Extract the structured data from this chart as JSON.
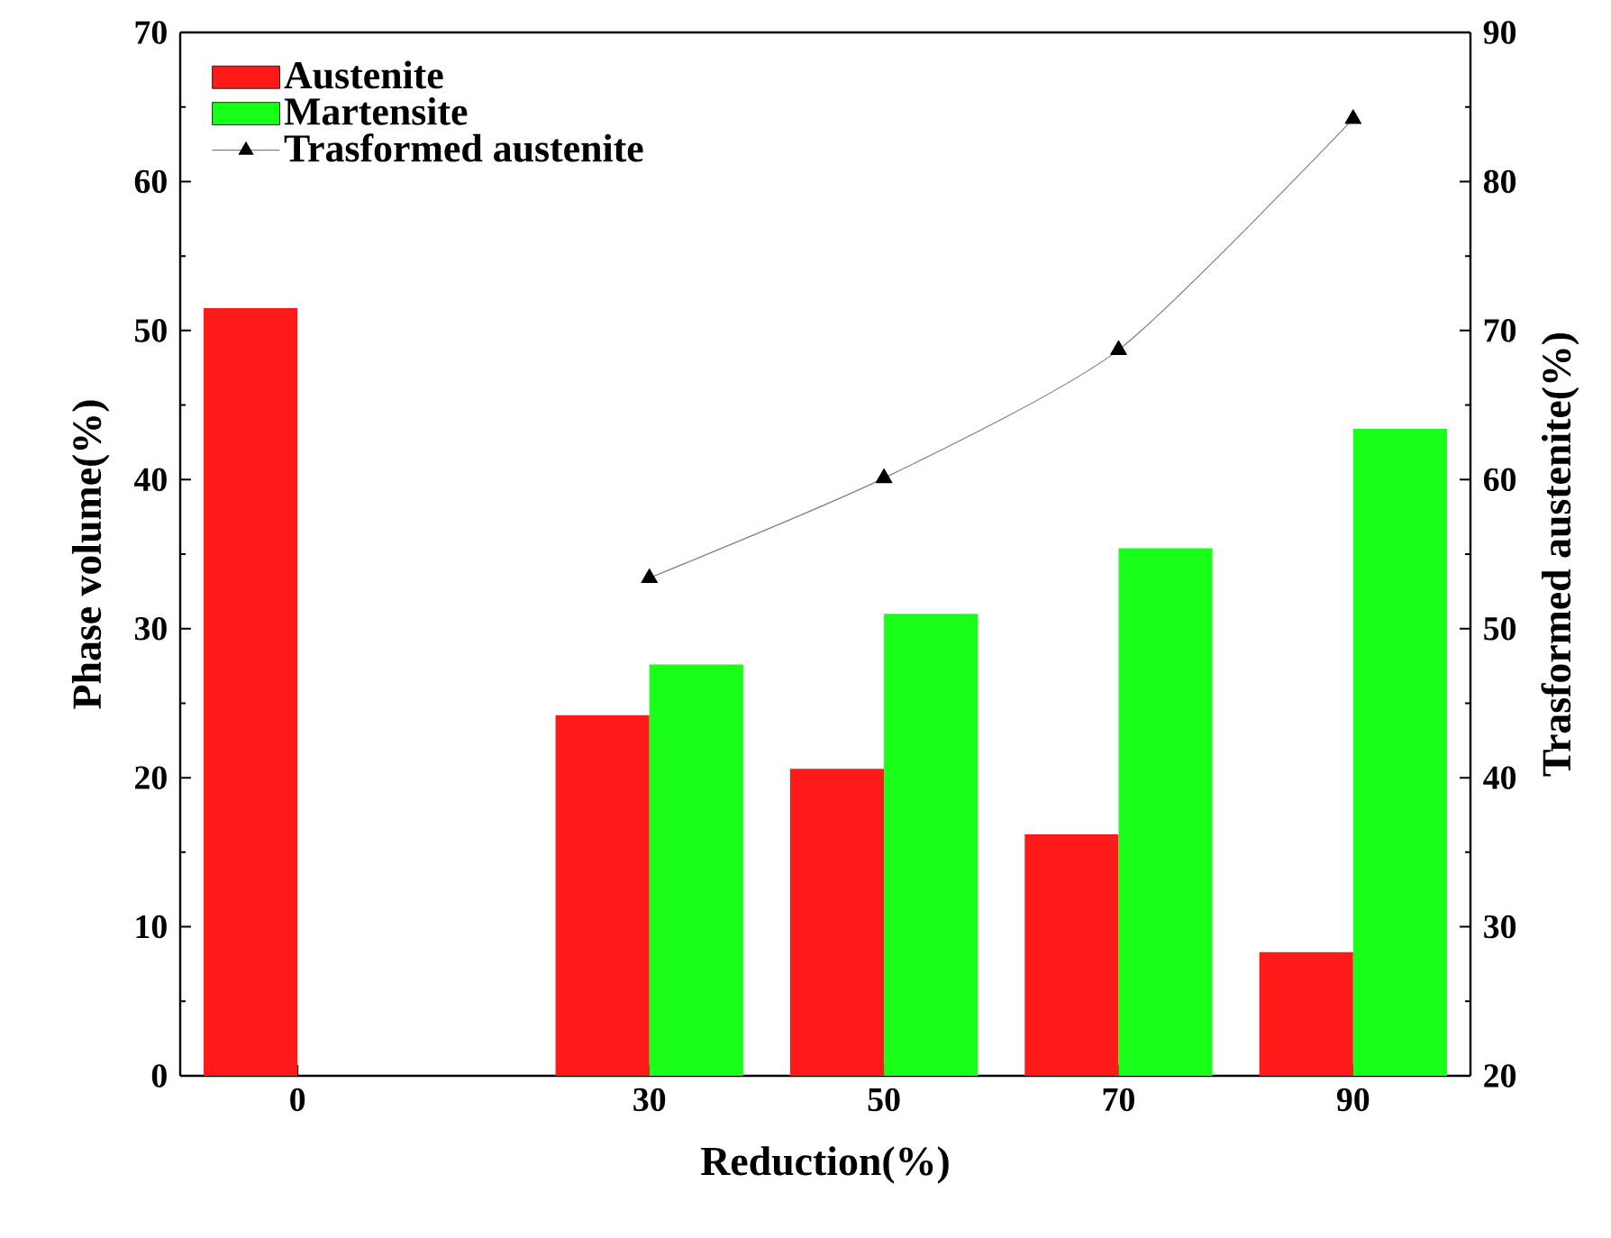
{
  "chart_data": {
    "type": "bar",
    "xlabel": "Reduction(%)",
    "ylabel": "Phase volume(%)",
    "y2label": "Trasformed austenite(%)",
    "x": [
      0,
      30,
      50,
      70,
      90
    ],
    "xlim": [
      -10,
      100
    ],
    "xticks": [
      0,
      30,
      50,
      70,
      90
    ],
    "ylim": [
      0,
      70
    ],
    "yticks": [
      0,
      10,
      20,
      30,
      40,
      50,
      60,
      70
    ],
    "y2lim": [
      20,
      90
    ],
    "y2ticks": [
      20,
      30,
      40,
      50,
      60,
      70,
      80,
      90
    ],
    "legend": "top left",
    "series": [
      {
        "name": "Austenite",
        "color": "#ff1a1a",
        "values": [
          51.5,
          24.2,
          20.6,
          16.2,
          8.3
        ]
      },
      {
        "name": "Martensite",
        "color": "#1aff1a",
        "values": [
          null,
          27.6,
          31.0,
          35.4,
          43.4
        ]
      },
      {
        "name": "Trasformed austenite",
        "type": "line",
        "axis": "y2",
        "marker": "triangle",
        "color": "#000000",
        "values": [
          null,
          53.4,
          60.1,
          68.7,
          84.2
        ]
      }
    ]
  }
}
